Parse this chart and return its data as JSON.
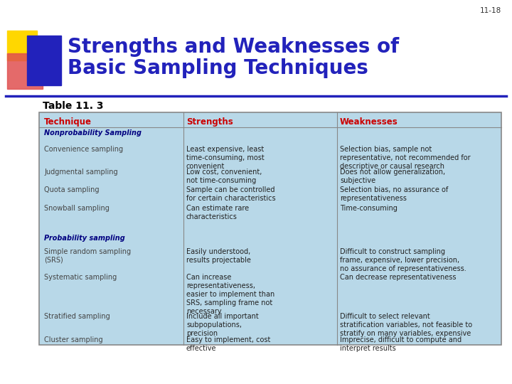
{
  "title_line1": "Strengths and Weaknesses of",
  "title_line2": "Basic Sampling Techniques",
  "slide_num": "11-18",
  "subtitle": "Table 11. 3",
  "title_color": "#2222BB",
  "subtitle_color": "#000000",
  "bg_color": "#FFFFFF",
  "table_bg": "#B8D8E8",
  "header_row": [
    "Technique",
    "Strengths",
    "Weaknesses"
  ],
  "header_color": "#CC0000",
  "logo_yellow": "#FFD700",
  "logo_red": "#E05050",
  "logo_blue": "#2222BB",
  "divider_color": "#2222BB",
  "line_color": "#888888",
  "text_color": "#222222",
  "nonprob_color": "#000080",
  "rows": [
    {
      "tech": "Nonprobability Sampling",
      "style": "bold_italic",
      "color": "#000080",
      "str": "",
      "wk": ""
    },
    {
      "tech": "Convenience sampling",
      "style": "normal",
      "color": "#444444",
      "str": "Least expensive, least\ntime-consuming, most\nconvenient",
      "wk": "Selection bias, sample not\nrepresentative, not recommended for\ndescriptive or causal research"
    },
    {
      "tech": "Judgmental sampling",
      "style": "normal",
      "color": "#444444",
      "str": "Low cost, convenient,\nnot time-consuming",
      "wk": "Does not allow generalization,\nsubjective"
    },
    {
      "tech": "Quota sampling",
      "style": "normal",
      "color": "#444444",
      "str": "Sample can be controlled\nfor certain characteristics",
      "wk": "Selection bias, no assurance of\nrepresentativeness"
    },
    {
      "tech": "Snowball sampling",
      "style": "normal",
      "color": "#444444",
      "str": "Can estimate rare\ncharacteristics",
      "wk": "Time-consuming"
    },
    {
      "tech": "",
      "style": "normal",
      "color": "#444444",
      "str": "",
      "wk": ""
    },
    {
      "tech": "Probability sampling",
      "style": "bold_italic",
      "color": "#000080",
      "str": "",
      "wk": ""
    },
    {
      "tech": "Simple random sampling\n(SRS)",
      "style": "normal",
      "color": "#444444",
      "str": "Easily understood,\nresults projectable",
      "wk": "Difficult to construct sampling\nframe, expensive, lower precision,\nno assurance of representativeness."
    },
    {
      "tech": "Systematic sampling",
      "style": "normal",
      "color": "#444444",
      "str": "Can increase\nrepresentativeness,\neasier to implement than\nSRS, sampling frame not\nnecessary",
      "wk": "Can decrease representativeness"
    },
    {
      "tech": "Stratified sampling",
      "style": "normal",
      "color": "#444444",
      "str": "Include all important\nsubpopulations,\nprecision",
      "wk": "Difficult to select relevant\nstratification variables, not feasible to\nstratify on many variables, expensive"
    },
    {
      "tech": "Cluster sampling",
      "style": "normal",
      "color": "#444444",
      "str": "Easy to implement, cost\neffective",
      "wk": "Imprecise, difficult to compute and\ninterpret results"
    }
  ]
}
